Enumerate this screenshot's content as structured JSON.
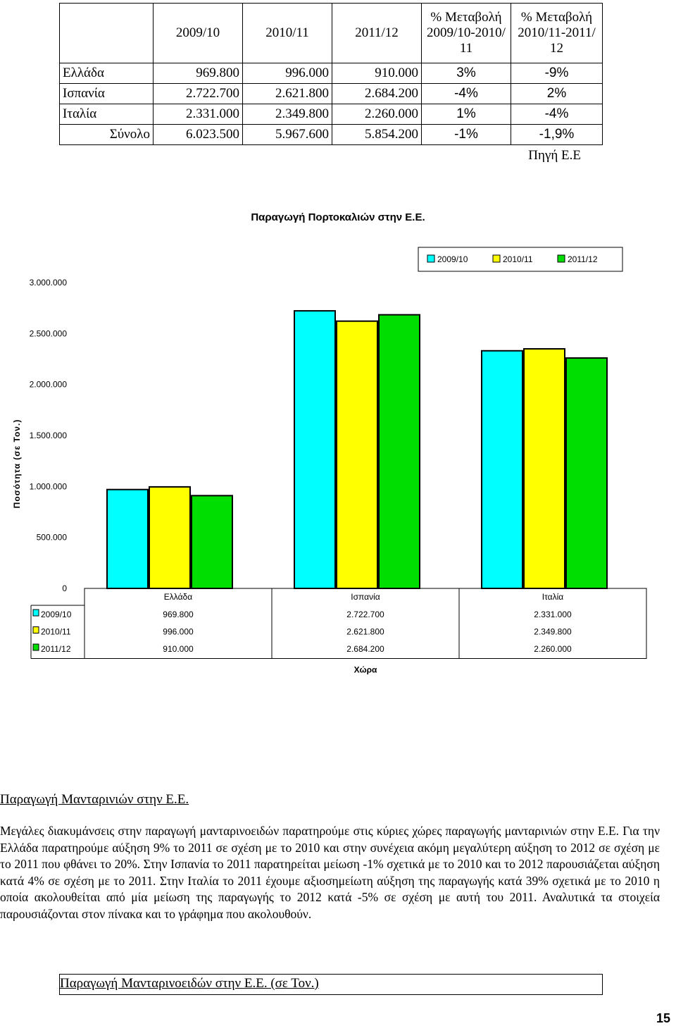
{
  "table": {
    "headers": [
      "",
      "2009/10",
      "2010/11",
      "2011/12",
      "% Μεταβολή\n2009/10-2010/\n11",
      "% Μεταβολή\n2010/11-2011/\n12"
    ],
    "rows": [
      {
        "country": "Ελλάδα",
        "v1": "969.800",
        "v2": "996.000",
        "v3": "910.000",
        "p1": "3%",
        "p2": "-9%"
      },
      {
        "country": "Ισπανία",
        "v1": "2.722.700",
        "v2": "2.621.800",
        "v3": "2.684.200",
        "p1": "-4%",
        "p2": "2%"
      },
      {
        "country": "Ιταλία",
        "v1": "2.331.000",
        "v2": "2.349.800",
        "v3": "2.260.000",
        "p1": "1%",
        "p2": "-4%"
      },
      {
        "country": "Σύνολο",
        "v1": "6.023.500",
        "v2": "5.967.600",
        "v3": "5.854.200",
        "p1": "-1%",
        "p2": "-1,9%"
      }
    ],
    "source": "Πηγή Ε.Ε"
  },
  "chart_data": {
    "type": "bar",
    "title": "Παραγωγή Πορτοκαλιών στην Ε.Ε.",
    "xlabel": "Χώρα",
    "ylabel": "Ποσότητα (σε Τον.)",
    "categories": [
      "Ελλάδα",
      "Ισπανία",
      "Ιταλία"
    ],
    "series": [
      {
        "name": "2009/10",
        "values": [
          969800,
          2722700,
          2331000
        ],
        "labels": [
          "969.800",
          "2.722.700",
          "2.331.000"
        ],
        "color": "#00ffff"
      },
      {
        "name": "2010/11",
        "values": [
          996000,
          2621800,
          2349800
        ],
        "labels": [
          "996.000",
          "2.621.800",
          "2.349.800"
        ],
        "color": "#ffff00"
      },
      {
        "name": "2011/12",
        "values": [
          910000,
          2684200,
          2260000
        ],
        "labels": [
          "910.000",
          "2.684.200",
          "2.260.000"
        ],
        "color": "#00dd00"
      }
    ],
    "ylim": [
      0,
      3000000
    ],
    "yticks": [
      0,
      500000,
      1000000,
      1500000,
      2000000,
      2500000,
      3000000
    ],
    "ytick_labels": [
      "0",
      "500.000",
      "1.000.000",
      "1.500.000",
      "2.000.000",
      "2.500.000",
      "3.000.000"
    ],
    "legend": "top-right",
    "grid": false
  },
  "section_heading": "Παραγωγή Μανταρινιών στην Ε.Ε.",
  "paragraph": "Μεγάλες διακυμάνσεις στην παραγωγή μανταρινοειδών παρατηρούμε στις κύριες χώρες παραγωγής μανταρινιών στην Ε.Ε. Για την Ελλάδα παρατηρούμε αύξηση 9% το 2011 σε σχέση με το 2010 και στην συνέχεια ακόμη μεγαλύτερη αύξηση το 2012 σε σχέση με το 2011 που φθάνει το 20%. Στην Ισπανία το 2011 παρατηρείται μείωση -1% σχετικά με το 2010 και το 2012 παρουσιάζεται αύξηση κατά 4% σε σχέση με το 2011. Στην Ιταλία το 2011 έχουμε αξιοσημείωτη αύξηση της παραγωγής κατά 39% σχετικά με το 2010 η οποία ακολουθείται από μία μείωση της παραγωγής το 2012 κατά -5% σε σχέση με αυτή του 2011. Αναλυτικά τα στοιχεία παρουσιάζονται στον πίνακα και το γράφημα που ακολουθούν.",
  "bottom_table_title": "Παραγωγή Μανταρινοειδών στην Ε.Ε. (σε Τον.)",
  "page_number": "15"
}
